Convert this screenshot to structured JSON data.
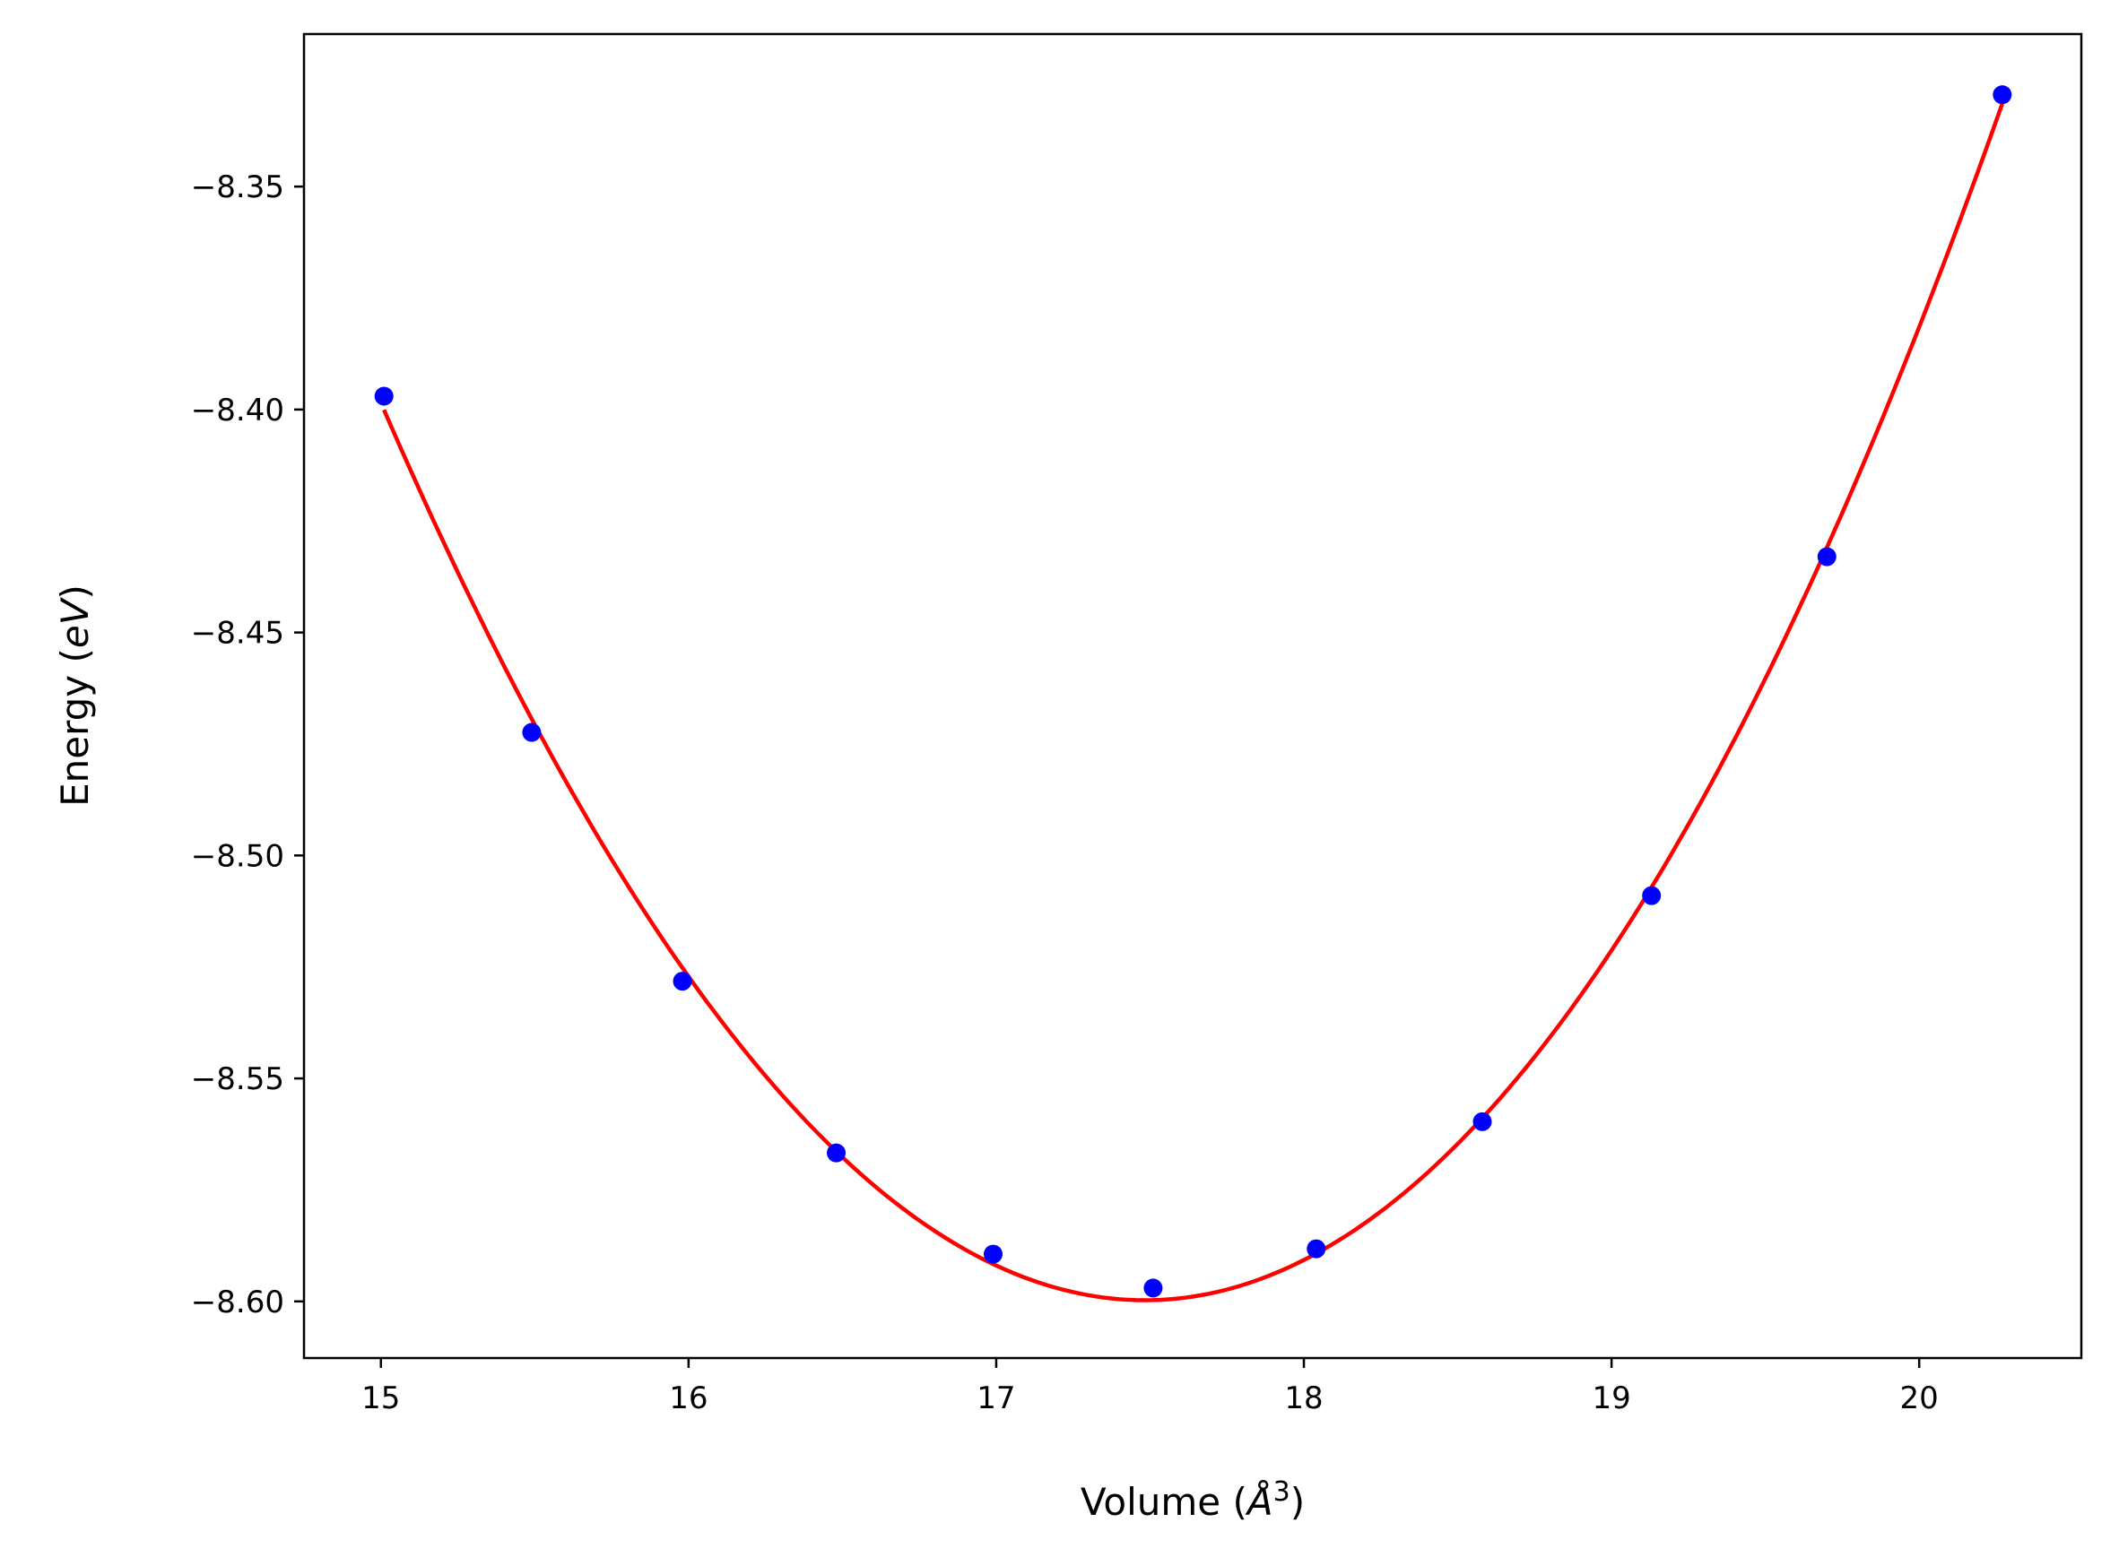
{
  "chart_data": {
    "type": "scatter",
    "title": "",
    "xlabel": {
      "prefix": "Volume (",
      "symbol": "Å",
      "sup": "3",
      "suffix": ")"
    },
    "ylabel": {
      "prefix": "Energy (",
      "symbol": "eV",
      "suffix": ")"
    },
    "xlim": [
      14.75,
      20.527
    ],
    "ylim": [
      -8.6127,
      -8.3158
    ],
    "xticks": [
      15,
      16,
      17,
      18,
      19,
      20
    ],
    "xtick_labels": [
      "15",
      "16",
      "17",
      "18",
      "19",
      "20"
    ],
    "yticks": [
      -8.35,
      -8.4,
      -8.45,
      -8.5,
      -8.55,
      -8.6
    ],
    "ytick_labels": [
      "−8.35",
      "−8.40",
      "−8.45",
      "−8.50",
      "−8.55",
      "−8.60"
    ],
    "grid": false,
    "series": [
      {
        "name": "data",
        "kind": "scatter",
        "color": "#0000ff",
        "x": [
          15.01,
          15.49,
          15.98,
          16.48,
          16.99,
          17.51,
          18.04,
          18.58,
          19.13,
          19.7,
          20.27
        ],
        "y": [
          -8.397,
          -8.4724,
          -8.5282,
          -8.5667,
          -8.5894,
          -8.597,
          -8.5882,
          -8.5597,
          -8.509,
          -8.433,
          -8.3294
        ]
      },
      {
        "name": "fit",
        "kind": "line",
        "color": "#ff0000",
        "fit": "cubic least squares of data",
        "x_range": [
          15.01,
          20.27
        ]
      }
    ]
  }
}
